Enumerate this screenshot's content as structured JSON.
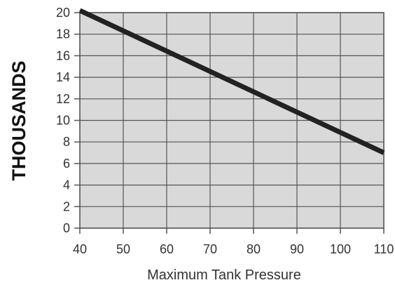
{
  "chart_data": {
    "type": "line",
    "title": "",
    "xlabel": "Maximum Tank Pressure",
    "ylabel": "THOUSANDS",
    "xlim": [
      40,
      110
    ],
    "ylim": [
      0,
      20
    ],
    "x_ticks": [
      40,
      50,
      60,
      70,
      80,
      90,
      100,
      110
    ],
    "y_ticks": [
      0,
      2,
      4,
      6,
      8,
      10,
      12,
      14,
      16,
      18,
      20
    ],
    "grid": true,
    "legend": "none",
    "series": [
      {
        "x": [
          40,
          110
        ],
        "y": [
          20.2,
          7.0
        ]
      }
    ],
    "colors": {
      "plot_background": "#d9d9d9",
      "grid": "#555555",
      "line": "#222222",
      "text": "#333333"
    }
  }
}
